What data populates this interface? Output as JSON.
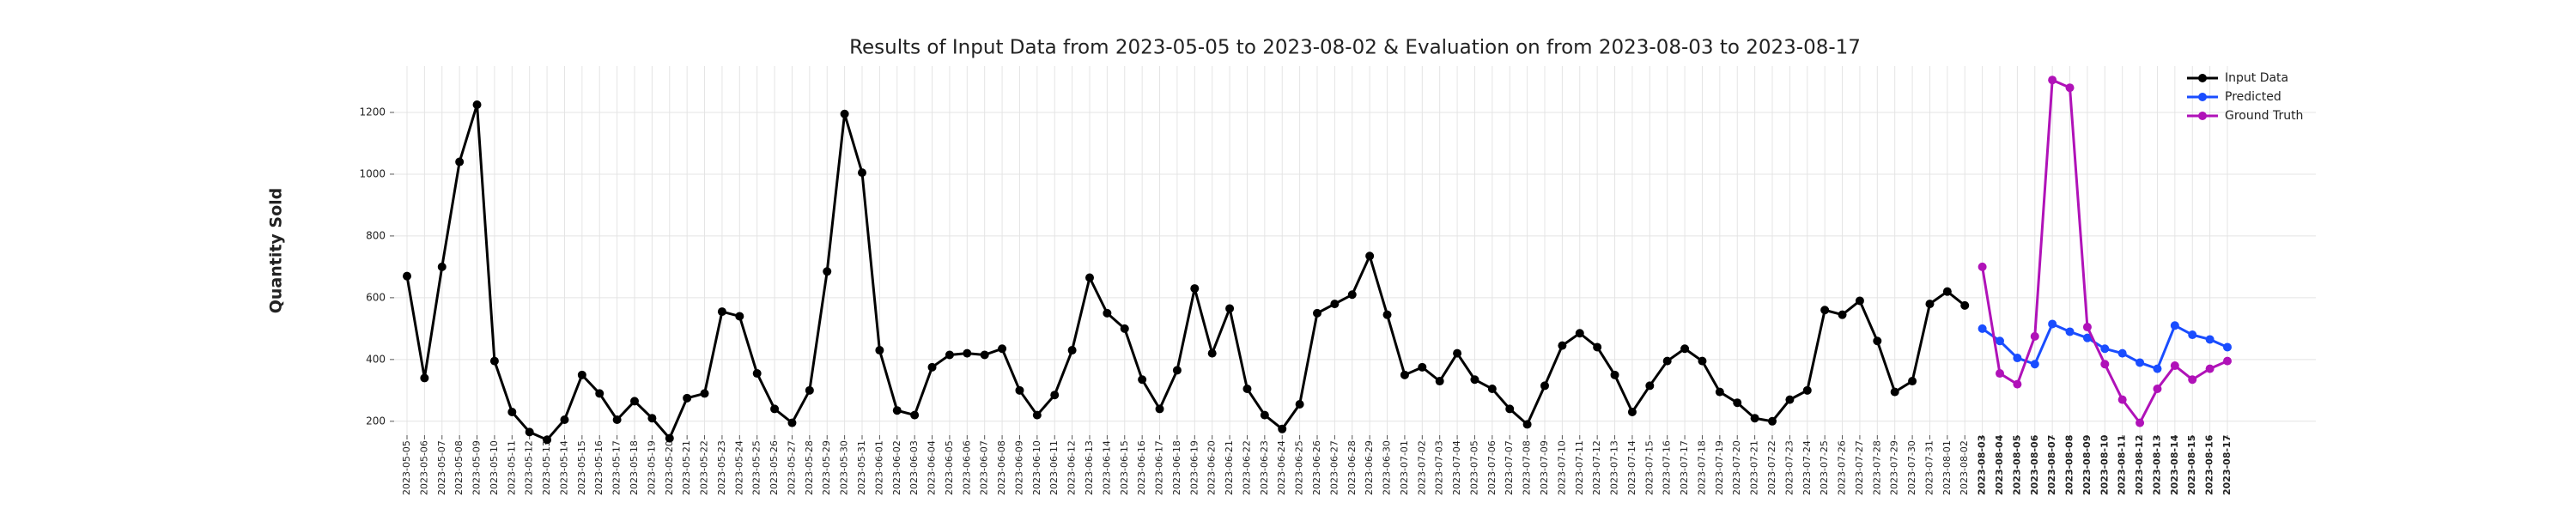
{
  "chart_data": {
    "type": "line",
    "title": "Results of Input Data from 2023-05-05 to 2023-08-02 & Evaluation on from 2023-08-03 to 2023-08-17",
    "ylabel": "Quantity Sold",
    "x": [
      "2023-05-05",
      "2023-05-06",
      "2023-05-07",
      "2023-05-08",
      "2023-05-09",
      "2023-05-10",
      "2023-05-11",
      "2023-05-12",
      "2023-05-13",
      "2023-05-14",
      "2023-05-15",
      "2023-05-16",
      "2023-05-17",
      "2023-05-18",
      "2023-05-19",
      "2023-05-20",
      "2023-05-21",
      "2023-05-22",
      "2023-05-23",
      "2023-05-24",
      "2023-05-25",
      "2023-05-26",
      "2023-05-27",
      "2023-05-28",
      "2023-05-29",
      "2023-05-30",
      "2023-05-31",
      "2023-06-01",
      "2023-06-02",
      "2023-06-03",
      "2023-06-04",
      "2023-06-05",
      "2023-06-06",
      "2023-06-07",
      "2023-06-08",
      "2023-06-09",
      "2023-06-10",
      "2023-06-11",
      "2023-06-12",
      "2023-06-13",
      "2023-06-14",
      "2023-06-15",
      "2023-06-16",
      "2023-06-17",
      "2023-06-18",
      "2023-06-19",
      "2023-06-20",
      "2023-06-21",
      "2023-06-22",
      "2023-06-23",
      "2023-06-24",
      "2023-06-25",
      "2023-06-26",
      "2023-06-27",
      "2023-06-28",
      "2023-06-29",
      "2023-06-30",
      "2023-07-01",
      "2023-07-02",
      "2023-07-03",
      "2023-07-04",
      "2023-07-05",
      "2023-07-06",
      "2023-07-07",
      "2023-07-08",
      "2023-07-09",
      "2023-07-10",
      "2023-07-11",
      "2023-07-12",
      "2023-07-13",
      "2023-07-14",
      "2023-07-15",
      "2023-07-16",
      "2023-07-17",
      "2023-07-18",
      "2023-07-19",
      "2023-07-20",
      "2023-07-21",
      "2023-07-22",
      "2023-07-23",
      "2023-07-24",
      "2023-07-25",
      "2023-07-26",
      "2023-07-27",
      "2023-07-28",
      "2023-07-29",
      "2023-07-30",
      "2023-07-31",
      "2023-08-01",
      "2023-08-02",
      "2023-08-03",
      "2023-08-04",
      "2023-08-05",
      "2023-08-06",
      "2023-08-07",
      "2023-08-08",
      "2023-08-09",
      "2023-08-10",
      "2023-08-11",
      "2023-08-12",
      "2023-08-13",
      "2023-08-14",
      "2023-08-15",
      "2023-08-16",
      "2023-08-17"
    ],
    "series": [
      {
        "name": "Input Data",
        "color": "#000000",
        "values": [
          670,
          340,
          700,
          1040,
          1225,
          395,
          230,
          165,
          140,
          205,
          350,
          290,
          205,
          265,
          210,
          145,
          275,
          290,
          555,
          540,
          355,
          240,
          195,
          300,
          685,
          1195,
          1005,
          430,
          235,
          220,
          375,
          415,
          420,
          415,
          435,
          300,
          220,
          285,
          430,
          665,
          550,
          500,
          335,
          240,
          365,
          630,
          420,
          565,
          305,
          220,
          175,
          255,
          550,
          580,
          610,
          735,
          545,
          350,
          375,
          330,
          420,
          335,
          305,
          240,
          190,
          315,
          445,
          485,
          440,
          350,
          230,
          315,
          395,
          435,
          395,
          295,
          260,
          210,
          200,
          270,
          300,
          560,
          545,
          590,
          460,
          295,
          330,
          580,
          620,
          575,
          null,
          null,
          null,
          null,
          null,
          null,
          null,
          null,
          null,
          null,
          null,
          null,
          null,
          null,
          null
        ]
      },
      {
        "name": "Predicted",
        "color": "#1a4dff",
        "values": [
          null,
          null,
          null,
          null,
          null,
          null,
          null,
          null,
          null,
          null,
          null,
          null,
          null,
          null,
          null,
          null,
          null,
          null,
          null,
          null,
          null,
          null,
          null,
          null,
          null,
          null,
          null,
          null,
          null,
          null,
          null,
          null,
          null,
          null,
          null,
          null,
          null,
          null,
          null,
          null,
          null,
          null,
          null,
          null,
          null,
          null,
          null,
          null,
          null,
          null,
          null,
          null,
          null,
          null,
          null,
          null,
          null,
          null,
          null,
          null,
          null,
          null,
          null,
          null,
          null,
          null,
          null,
          null,
          null,
          null,
          null,
          null,
          null,
          null,
          null,
          null,
          null,
          null,
          null,
          null,
          null,
          null,
          null,
          null,
          null,
          null,
          null,
          null,
          null,
          null,
          500,
          460,
          405,
          385,
          515,
          490,
          470,
          435,
          420,
          390,
          370,
          510,
          480,
          465,
          440
        ]
      },
      {
        "name": "Ground Truth",
        "color": "#b012b8",
        "values": [
          null,
          null,
          null,
          null,
          null,
          null,
          null,
          null,
          null,
          null,
          null,
          null,
          null,
          null,
          null,
          null,
          null,
          null,
          null,
          null,
          null,
          null,
          null,
          null,
          null,
          null,
          null,
          null,
          null,
          null,
          null,
          null,
          null,
          null,
          null,
          null,
          null,
          null,
          null,
          null,
          null,
          null,
          null,
          null,
          null,
          null,
          null,
          null,
          null,
          null,
          null,
          null,
          null,
          null,
          null,
          null,
          null,
          null,
          null,
          null,
          null,
          null,
          null,
          null,
          null,
          null,
          null,
          null,
          null,
          null,
          null,
          null,
          null,
          null,
          null,
          null,
          null,
          null,
          null,
          null,
          null,
          null,
          null,
          null,
          null,
          null,
          null,
          null,
          null,
          null,
          700,
          355,
          320,
          475,
          1305,
          1280,
          505,
          385,
          270,
          195,
          305,
          380,
          335,
          370,
          395
        ]
      }
    ],
    "ylim": [
      155,
      1350
    ],
    "yticks": [
      200,
      400,
      600,
      800,
      1000,
      1200
    ],
    "grid": true,
    "legend": "upper right"
  }
}
